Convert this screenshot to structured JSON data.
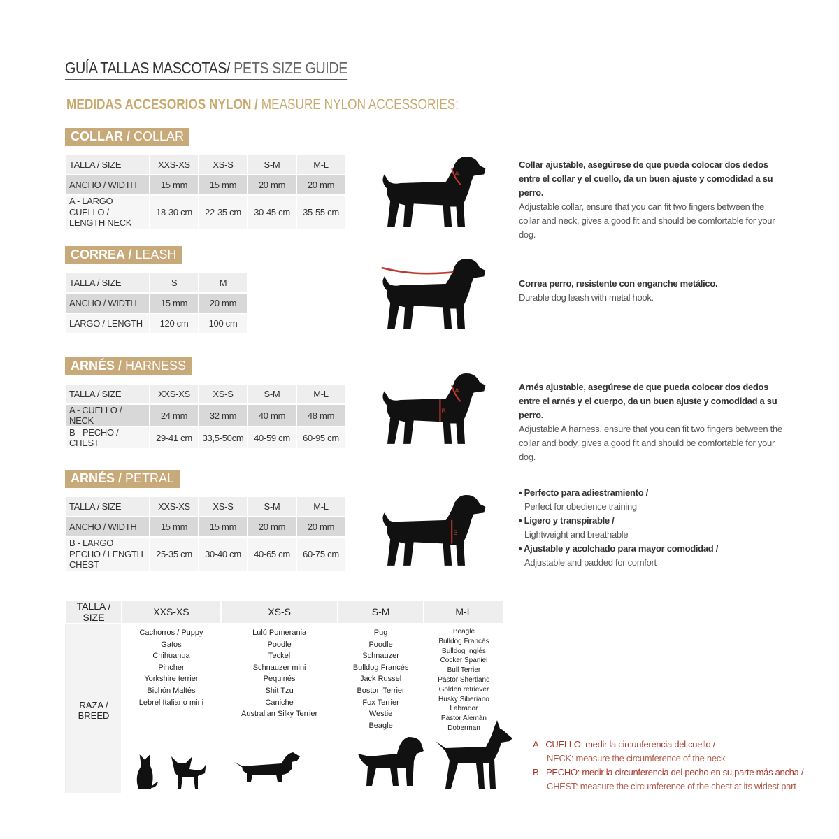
{
  "title": {
    "es": "GUÍA TALLAS MASCOTAS/",
    "en": " PETS SIZE GUIDE"
  },
  "subtitle": {
    "es": "MEDIDAS ACCESORIOS NYLON /",
    "en": " MEASURE NYLON ACCESSORIES:"
  },
  "colors": {
    "tag": "#c8a97a",
    "gold": "#c9a96e",
    "red": "#b03a2e"
  },
  "sections": {
    "collar": {
      "tag_es": "COLLAR /",
      "tag_en": " COLLAR",
      "rows": [
        [
          "TALLA / SIZE",
          "XXS-XS",
          "XS-S",
          "S-M",
          "M-L"
        ],
        [
          "ANCHO / WIDTH",
          "15 mm",
          "15 mm",
          "20 mm",
          "20 mm"
        ],
        [
          "A - LARGO CUELLO / LENGTH NECK",
          "18-30 cm",
          "22-35 cm",
          "30-45 cm",
          "35-55 cm"
        ]
      ],
      "desc_es": "Collar ajustable, asegúrese de que pueda colocar dos dedos entre el collar y el cuello, da un buen ajuste y comodidad a su perro.",
      "desc_en": "Adjustable collar, ensure that you can fit two fingers between the collar and neck, gives a good fit and should be comfortable for your dog."
    },
    "leash": {
      "tag_es": "CORREA /",
      "tag_en": " LEASH",
      "rows": [
        [
          "TALLA / SIZE",
          "S",
          "M"
        ],
        [
          "ANCHO / WIDTH",
          "15 mm",
          "20 mm"
        ],
        [
          "LARGO / LENGTH",
          "120 cm",
          "100 cm"
        ]
      ],
      "desc_es": "Correa perro, resistente con enganche metálico.",
      "desc_en": "Durable dog leash with metal hook."
    },
    "harness": {
      "tag_es": "ARNÉS /",
      "tag_en": " HARNESS",
      "rows": [
        [
          "TALLA / SIZE",
          "XXS-XS",
          "XS-S",
          "S-M",
          "M-L"
        ],
        [
          "A - CUELLO / NECK",
          "24 mm",
          "32 mm",
          "40 mm",
          "48 mm"
        ],
        [
          "B - PECHO / CHEST",
          "29-41 cm",
          "33,5-50cm",
          "40-59 cm",
          "60-95 cm"
        ]
      ],
      "desc_es": "Arnés ajustable, asegúrese de que pueda colocar dos dedos entre el arnés y el cuerpo, da un buen ajuste y comodidad a su perro.",
      "desc_en": "Adjustable A harness, ensure that you can fit two fingers between the collar and body, gives a good fit and should be comfortable for your dog."
    },
    "petral": {
      "tag_es": "ARNÉS /",
      "tag_en": " PETRAL",
      "rows": [
        [
          "TALLA / SIZE",
          "XXS-XS",
          "XS-S",
          "S-M",
          "M-L"
        ],
        [
          "ANCHO / WIDTH",
          "15 mm",
          "15 mm",
          "20 mm",
          "20 mm"
        ],
        [
          "B - LARGO PECHO / LENGTH CHEST",
          "25-35 cm",
          "30-40 cm",
          "40-65 cm",
          "60-75 cm"
        ]
      ],
      "bullets": [
        {
          "es": "• Perfecto para adiestramiento /",
          "en": "Perfect for obedience training"
        },
        {
          "es": "• Ligero y transpirable /",
          "en": "Lightweight and breathable"
        },
        {
          "es": "• Ajustable y acolchado para mayor comodidad /",
          "en": "Adjustable and padded for comfort"
        }
      ]
    }
  },
  "breeds": {
    "header": [
      "TALLA /  SIZE",
      "XXS-XS",
      "XS-S",
      "S-M",
      "M-L"
    ],
    "row_label": "RAZA / BREED",
    "lists": [
      [
        "Cachorros / Puppy",
        "Gatos",
        "Chihuahua",
        "Pincher",
        "Yorkshire terrier",
        "Bichón Maltés",
        "Lebrel Italiano mini"
      ],
      [
        "Lulú Pomerania",
        "Poodle",
        "Teckel",
        "Schnauzer mini",
        "Pequinés",
        "Shit Tzu",
        "Caniche",
        "Australian Silky Terrier"
      ],
      [
        "Pug",
        "Poodle",
        "Schnauzer",
        "Bulldog Francés",
        "Jack Russel",
        "Boston Terrier",
        "Fox Terrier",
        "Westie",
        "Beagle"
      ],
      [
        "Beagle",
        "Bulldog Francés",
        "Bulldog Inglés",
        "Cocker Spaniel",
        "Bull Terrier",
        "Pastor Shertland",
        "Golden retriever",
        "Husky Siberiano",
        "Labrador",
        "Pastor Alemán",
        "Doberman"
      ]
    ]
  },
  "legend": [
    {
      "es": "A - CUELLO: medir la circunferencia del cuello /",
      "en": "NECK: measure the circumference of the neck"
    },
    {
      "es": "B - PECHO: medir la circunferencia del pecho en su parte más ancha /",
      "en": "CHEST: measure the circumference of the chest at its widest part"
    }
  ]
}
